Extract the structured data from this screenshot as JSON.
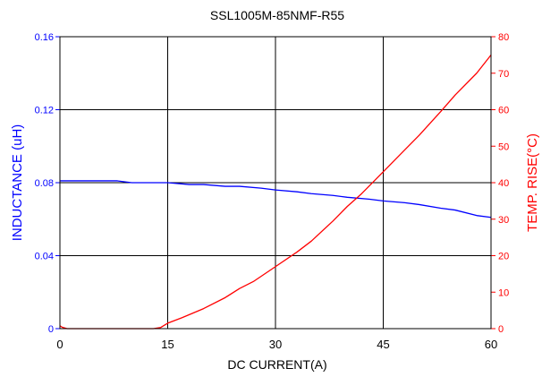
{
  "chart_data": {
    "type": "line",
    "title": "SSL1005M-85NMF-R55",
    "xlabel": "DC CURRENT(A)",
    "ylabel_left": "INDUCTANCE (uH)",
    "ylabel_right": "TEMP. RISE(°C)",
    "xlim": [
      0,
      60
    ],
    "ylim_left": [
      0,
      0.16
    ],
    "ylim_right": [
      0,
      80
    ],
    "x_ticks": [
      "0",
      "15",
      "30",
      "45",
      "60"
    ],
    "y_ticks_left": [
      "0",
      "0.04",
      "0.08",
      "0.12",
      "0.16"
    ],
    "y_ticks_right": [
      "0",
      "10",
      "20",
      "30",
      "40",
      "50",
      "60",
      "70",
      "80"
    ],
    "grid": true,
    "colors": {
      "inductance": "#0000ff",
      "temp_rise": "#ff0000",
      "grid": "#000000"
    },
    "series": [
      {
        "axis": "left",
        "color": "#0000ff",
        "x": [
          0,
          5,
          8,
          10,
          13,
          15,
          18,
          20,
          23,
          25,
          28,
          30,
          33,
          35,
          38,
          40,
          43,
          45,
          48,
          50,
          53,
          55,
          58,
          60
        ],
        "y": [
          0.081,
          0.081,
          0.081,
          0.08,
          0.08,
          0.08,
          0.079,
          0.079,
          0.078,
          0.078,
          0.077,
          0.076,
          0.075,
          0.074,
          0.073,
          0.072,
          0.071,
          0.07,
          0.069,
          0.068,
          0.066,
          0.065,
          0.062,
          0.061
        ]
      },
      {
        "axis": "right",
        "color": "#ff0000",
        "x": [
          0,
          0.3,
          1,
          5,
          10,
          12,
          13,
          14,
          15,
          17,
          20,
          23,
          25,
          27,
          30,
          33,
          35,
          38,
          40,
          42,
          45,
          48,
          50,
          53,
          55,
          58,
          60
        ],
        "y": [
          0.8,
          0.4,
          0,
          0,
          0,
          0,
          0,
          0.3,
          1.5,
          3,
          5.5,
          8.5,
          11,
          13,
          17,
          21,
          24,
          29.5,
          33.5,
          37,
          43,
          49,
          53,
          59.5,
          64,
          70,
          75
        ]
      }
    ]
  }
}
